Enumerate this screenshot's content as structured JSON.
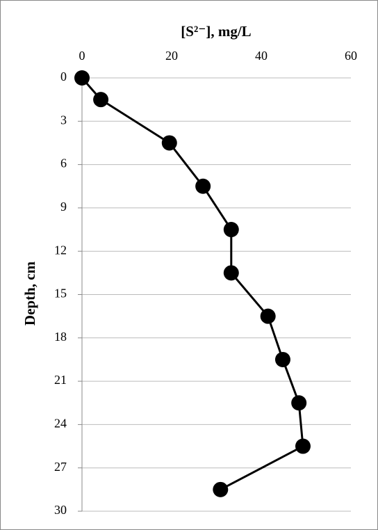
{
  "chart_data": {
    "type": "line",
    "x_label": "[S²⁻], mg/L",
    "y_label": "Depth, cm",
    "series": [
      {
        "color": "#000000",
        "x": [
          0,
          4.2,
          19.5,
          27,
          33.3,
          33.3,
          41.5,
          44.8,
          48.4,
          49.3,
          30.9
        ],
        "values": [
          0,
          1.5,
          4.5,
          7.5,
          10.5,
          13.5,
          16.5,
          19.5,
          22.5,
          25.5,
          28.5
        ]
      }
    ],
    "xlim": [
      0,
      60
    ],
    "xticks": [
      0,
      20,
      40,
      60
    ],
    "ylim": [
      0,
      30
    ],
    "yticks": [
      0,
      3,
      6,
      9,
      12,
      15,
      18,
      21,
      24,
      27,
      30
    ],
    "y_reversed": true,
    "x_axis_position": "top",
    "grid": true
  }
}
